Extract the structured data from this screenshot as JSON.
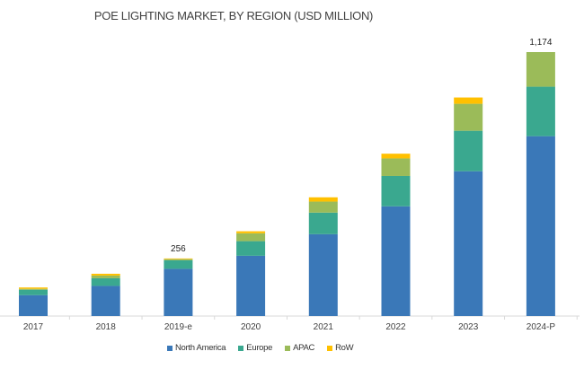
{
  "chart_data": {
    "type": "bar",
    "stacked": true,
    "title": "POE LIGHTING MARKET, BY REGION (USD MILLION)",
    "xlabel": "",
    "ylabel": "",
    "categories": [
      "2017",
      "2018",
      "2019-e",
      "2020",
      "2021",
      "2022",
      "2023",
      "2024-P"
    ],
    "series": [
      {
        "name": "North America",
        "color": "#3a78b8",
        "values": [
          93,
          134,
          210,
          268,
          364,
          488,
          644,
          800
        ]
      },
      {
        "name": "Europe",
        "color": "#3aa88f",
        "values": [
          24,
          34,
          38,
          65,
          96,
          135,
          180,
          220
        ]
      },
      {
        "name": "APAC",
        "color": "#9bbb59",
        "values": [
          4,
          12,
          5,
          35,
          49,
          78,
          120,
          154
        ]
      },
      {
        "name": "RoW",
        "color": "#ffc000",
        "values": [
          6,
          8,
          3,
          9,
          19,
          21,
          28,
          0
        ]
      }
    ],
    "data_labels": [
      {
        "category": "2019-e",
        "text": "256"
      },
      {
        "category": "2024-P",
        "text": "1,174"
      }
    ],
    "ylim": [
      0,
      1174
    ],
    "grid": false,
    "legend": "bottom"
  }
}
